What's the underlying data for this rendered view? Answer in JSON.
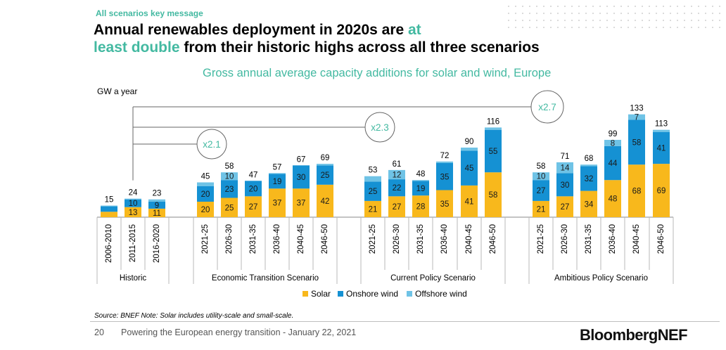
{
  "page": {
    "kicker": "All scenarios key message",
    "headline_a": "Annual renewables deployment in 2020s are ",
    "headline_b": "at",
    "headline_c": "least double",
    "headline_d": " from their historic highs across all three scenarios",
    "source": "Source: BNEF  Note: Solar includes utility-scale and small-scale.",
    "page_number": "20",
    "footer": "Powering the European energy transition - January 22, 2021",
    "logo": "BloombergNEF"
  },
  "chart_data": {
    "type": "bar",
    "stacked": true,
    "title": "Gross annual average capacity additions for solar and wind, Europe",
    "ylabel": "GW a year",
    "ylim": [
      0,
      135
    ],
    "legend_position": "bottom",
    "colors": {
      "Solar": "#f8b81c",
      "Onshore wind": "#1591d3",
      "Offshore wind": "#6fc3e6",
      "accent": "#43b9a1"
    },
    "groups": [
      {
        "name": "Historic",
        "categories": [
          "2006-2010",
          "2011-2015",
          "2016-2020"
        ]
      },
      {
        "name": "Economic Transition Scenario",
        "categories": [
          "2021-25",
          "2026-30",
          "2031-35",
          "2036-40",
          "2040-45",
          "2046-50"
        ]
      },
      {
        "name": "Current Policy Scenario",
        "categories": [
          "2021-25",
          "2026-30",
          "2031-35",
          "2036-40",
          "2040-45",
          "2046-50"
        ]
      },
      {
        "name": "Ambitious Policy Scenario",
        "categories": [
          "2021-25",
          "2026-30",
          "2031-35",
          "2036-40",
          "2040-45",
          "2046-50"
        ]
      }
    ],
    "series": [
      {
        "name": "Solar",
        "values": [
          7,
          13,
          11,
          20,
          25,
          27,
          37,
          37,
          42,
          21,
          27,
          28,
          35,
          41,
          58,
          21,
          27,
          34,
          48,
          68,
          69
        ],
        "labels": [
          "",
          "13",
          "11",
          "20",
          "25",
          "27",
          "37",
          "37",
          "42",
          "21",
          "27",
          "28",
          "35",
          "41",
          "58",
          "21",
          "27",
          "34",
          "48",
          "68",
          "69"
        ]
      },
      {
        "name": "Onshore wind",
        "values": [
          7,
          10,
          9,
          20,
          23,
          20,
          19,
          30,
          25,
          25,
          22,
          19,
          35,
          45,
          55,
          27,
          30,
          32,
          44,
          58,
          41
        ],
        "labels": [
          "",
          "10",
          "9",
          "20",
          "23",
          "20",
          "19",
          "30",
          "25",
          "25",
          "22",
          "19",
          "35",
          "45",
          "55",
          "27",
          "30",
          "32",
          "44",
          "58",
          "41"
        ]
      },
      {
        "name": "Offshore wind",
        "values": [
          1,
          1,
          3,
          5,
          10,
          0,
          1,
          0,
          2,
          7,
          12,
          1,
          2,
          4,
          3,
          10,
          14,
          2,
          8,
          7,
          3
        ],
        "labels": [
          "",
          "",
          "",
          "",
          "10",
          "",
          "",
          "",
          "",
          "",
          "12",
          "",
          "",
          "",
          "",
          "10",
          "14",
          "",
          "8",
          "7",
          ""
        ]
      }
    ],
    "totals": [
      "15",
      "24",
      "23",
      "45",
      "58",
      "47",
      "57",
      "67",
      "69",
      "53",
      "61",
      "48",
      "72",
      "90",
      "116",
      "58",
      "71",
      "68",
      "99",
      "133",
      "113"
    ],
    "annotations": [
      {
        "text": "x2.1",
        "group": "Economic Transition Scenario"
      },
      {
        "text": "x2.3",
        "group": "Current Policy Scenario"
      },
      {
        "text": "x2.7",
        "group": "Ambitious Policy Scenario"
      }
    ]
  }
}
